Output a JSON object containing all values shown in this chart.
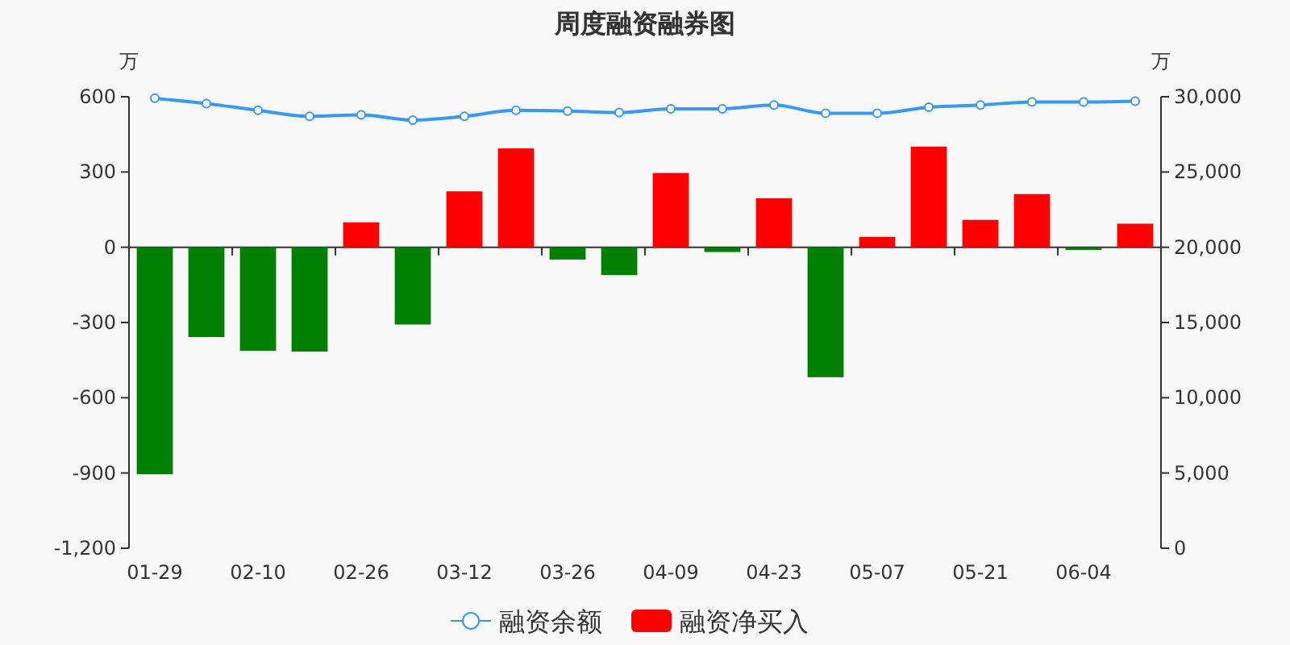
{
  "chart_data": {
    "type": "bar",
    "title": "周度融资融券图",
    "ylabel": "万",
    "y2label": "万",
    "categories": [
      "01-29",
      null,
      "02-10",
      null,
      "02-26",
      null,
      "03-12",
      null,
      "03-26",
      null,
      "04-09",
      null,
      "04-23",
      null,
      "05-07",
      null,
      "05-21",
      null,
      "06-04",
      null
    ],
    "series": [
      {
        "name": "融资余额",
        "type": "line",
        "axis": "y2",
        "color": "#3399ff",
        "values": [
          29900,
          29550,
          29100,
          28700,
          28800,
          28450,
          28700,
          29100,
          29050,
          28950,
          29200,
          29200,
          29450,
          28900,
          28900,
          29300,
          29450,
          29650,
          29650,
          29700
        ]
      },
      {
        "name": "融资净买入",
        "color": "#ff0000",
        "colors": [
          "#008000",
          "#008000",
          "#008000",
          "#008000",
          "#ff0000",
          "#008000",
          "#ff0000",
          "#ff0000",
          "#008000",
          "#008000",
          "#ff0000",
          "#008000",
          "#ff0000",
          "#008000",
          "#ff0000",
          "#ff0000",
          "#ff0000",
          "#ff0000",
          "#008000",
          "#ff0000"
        ],
        "values": [
          -905,
          -358,
          -413,
          -416,
          99,
          -308,
          223,
          394,
          -49,
          -111,
          296,
          -19,
          195,
          -518,
          41,
          401,
          109,
          212,
          -11,
          94
        ]
      }
    ],
    "marker": "circle",
    "ylim": [
      -1200,
      600
    ],
    "yticks": [
      {
        "value": -1200,
        "label": "-1,200"
      },
      -900,
      -600,
      -300,
      0,
      300,
      600
    ],
    "y2lim": [
      0,
      30000
    ],
    "y2ticks": [
      0,
      {
        "value": 5000,
        "label": "5,000"
      },
      {
        "value": 10000,
        "label": "10,000"
      },
      {
        "value": 15000,
        "label": "15,000"
      },
      {
        "value": 20000,
        "label": "20,000"
      },
      {
        "value": 25000,
        "label": "25,000"
      },
      {
        "value": 30000,
        "label": "30,000"
      }
    ],
    "legend": "bottom"
  }
}
